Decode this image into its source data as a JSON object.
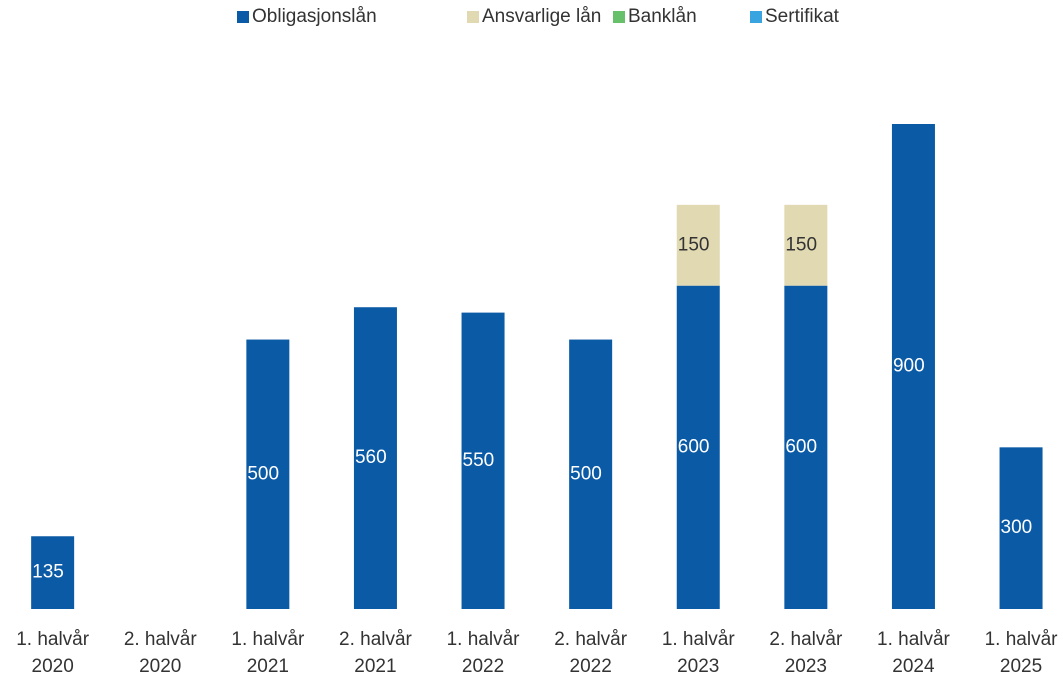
{
  "chart_data": {
    "type": "bar",
    "stacked": true,
    "categories": [
      [
        "1. halvår",
        "2020"
      ],
      [
        "2. halvår",
        "2020"
      ],
      [
        "1. halvår",
        "2021"
      ],
      [
        "2. halvår",
        "2021"
      ],
      [
        "1. halvår",
        "2022"
      ],
      [
        "2. halvår",
        "2022"
      ],
      [
        "1. halvår",
        "2023"
      ],
      [
        "2. halvår",
        "2023"
      ],
      [
        "1. halvår",
        "2024"
      ],
      [
        "1. halvår",
        "2025"
      ]
    ],
    "series": [
      {
        "name": "Obligasjonslån",
        "color": "#0b5aa6",
        "values": [
          135,
          null,
          500,
          560,
          550,
          500,
          600,
          600,
          900,
          300
        ]
      },
      {
        "name": "Ansvarlige lån",
        "color": "#e1d9b2",
        "values": [
          null,
          null,
          null,
          null,
          null,
          null,
          150,
          150,
          null,
          null
        ]
      },
      {
        "name": "Banklån",
        "color": "#66c16a",
        "values": [
          null,
          null,
          null,
          null,
          null,
          null,
          null,
          null,
          null,
          null
        ]
      },
      {
        "name": "Sertifikat",
        "color": "#3aa4e0",
        "values": [
          null,
          null,
          null,
          null,
          null,
          null,
          null,
          null,
          null,
          null
        ]
      }
    ],
    "legend": "top"
  }
}
